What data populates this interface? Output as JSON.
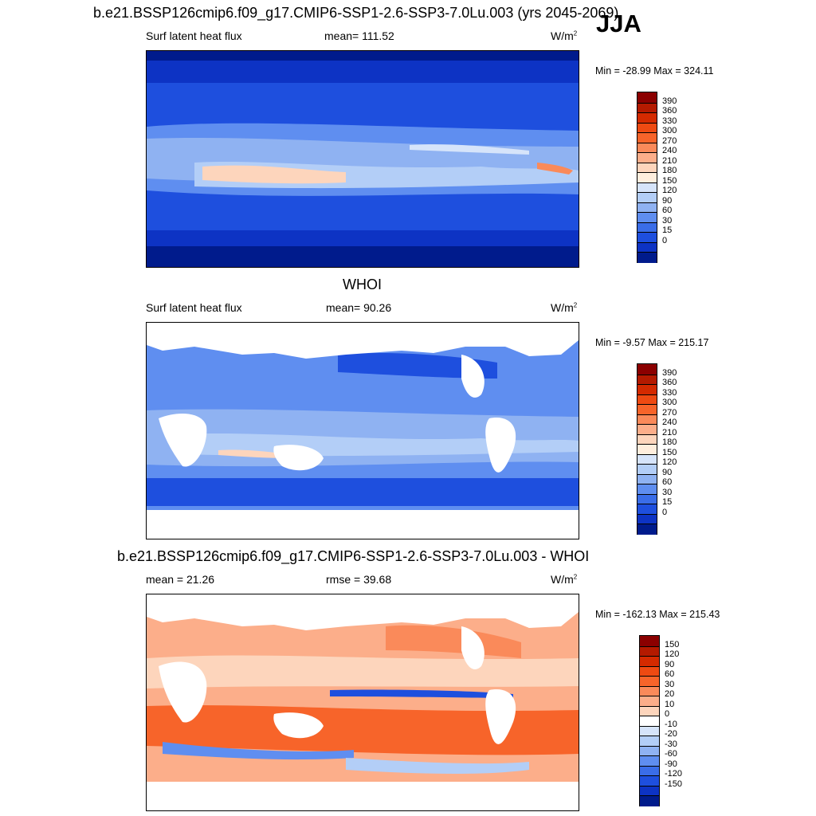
{
  "season": "JJA",
  "panels": [
    {
      "title": "b.e21.BSSP126cmip6.f09_g17.CMIP6-SSP1-2.6-SSP3-7.0Lu.003 (yrs 2045-2069)",
      "left": "Surf latent heat flux",
      "center": "mean= 111.52",
      "units": "W/m",
      "units_sup": "2",
      "minmax": "Min = -28.99 Max = 324.11"
    },
    {
      "title": "WHOI",
      "left": "Surf latent heat flux",
      "center": "mean=  90.26",
      "units": "W/m",
      "units_sup": "2",
      "minmax": "Min =  -9.57 Max = 215.17"
    },
    {
      "title": "b.e21.BSSP126cmip6.f09_g17.CMIP6-SSP1-2.6-SSP3-7.0Lu.003 - WHOI",
      "left": "mean =  21.26",
      "center": "rmse =  39.68",
      "units": "W/m",
      "units_sup": "2",
      "minmax": "Min = -162.13 Max = 215.43"
    }
  ],
  "chart_data": [
    {
      "type": "heatmap",
      "title": "b.e21.BSSP126cmip6.f09_g17.CMIP6-SSP1-2.6-SSP3-7.0Lu.003 (yrs 2045-2069)",
      "variable": "Surf latent heat flux",
      "units": "W/m2",
      "mean": 111.52,
      "min": -28.99,
      "max": 324.11,
      "colorbar_levels": [
        "390",
        "360",
        "330",
        "300",
        "270",
        "240",
        "210",
        "180",
        "150",
        "120",
        "90",
        "60",
        "30",
        "15",
        "0"
      ],
      "colors": [
        "#8b0000",
        "#b41a00",
        "#d42a00",
        "#ee4a12",
        "#f7642a",
        "#fa8a5a",
        "#fcae8a",
        "#fdd5bc",
        "#ffeedd",
        "#d6e4fa",
        "#b3cef7",
        "#8fb2f2",
        "#5f8ef0",
        "#3a6de8",
        "#1e4fde",
        "#0d33c4",
        "#001b8c"
      ]
    },
    {
      "type": "heatmap",
      "title": "WHOI",
      "variable": "Surf latent heat flux",
      "units": "W/m2",
      "mean": 90.26,
      "min": -9.57,
      "max": 215.17,
      "colorbar_levels": [
        "390",
        "360",
        "330",
        "300",
        "270",
        "240",
        "210",
        "180",
        "150",
        "120",
        "90",
        "60",
        "30",
        "15",
        "0"
      ]
    },
    {
      "type": "heatmap",
      "title": "b.e21.BSSP126cmip6.f09_g17.CMIP6-SSP1-2.6-SSP3-7.0Lu.003 - WHOI",
      "units": "W/m2",
      "mean": 21.26,
      "rmse": 39.68,
      "min": -162.13,
      "max": 215.43,
      "colorbar_levels": [
        "150",
        "120",
        "90",
        "60",
        "30",
        "20",
        "10",
        "0",
        "-10",
        "-20",
        "-30",
        "-60",
        "-90",
        "-120",
        "-150"
      ],
      "colors": [
        "#8b0000",
        "#b41a00",
        "#d42a00",
        "#ee4a12",
        "#f7642a",
        "#fa8a5a",
        "#fcae8a",
        "#fdd5bc",
        "#ffffff",
        "#d6e4fa",
        "#b3cef7",
        "#8fb2f2",
        "#5f8ef0",
        "#3a6de8",
        "#1e4fde",
        "#0d33c4",
        "#001b8c"
      ]
    }
  ]
}
